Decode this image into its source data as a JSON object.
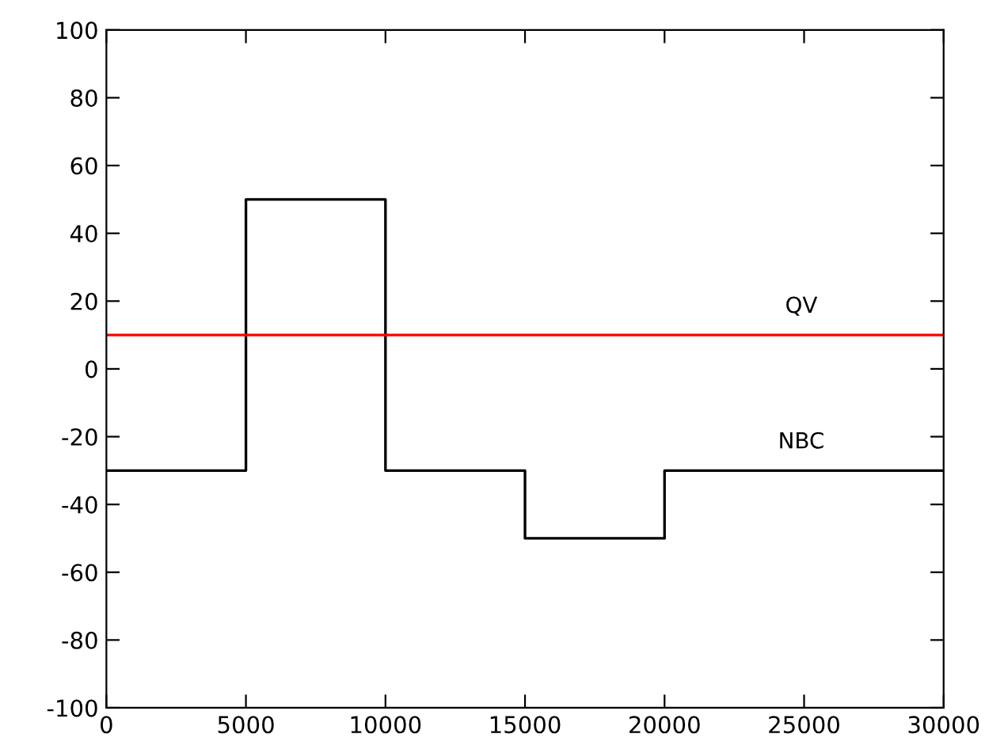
{
  "chart_data": {
    "type": "step",
    "xlim": [
      0,
      30000
    ],
    "ylim": [
      -100,
      100
    ],
    "xticks": [
      0,
      5000,
      10000,
      15000,
      20000,
      25000,
      30000
    ],
    "yticks": [
      -100,
      -80,
      -60,
      -40,
      -20,
      0,
      20,
      40,
      60,
      80,
      100
    ],
    "grid": false,
    "legend": false,
    "series": [
      {
        "name": "NBC",
        "color": "#000000",
        "x": [
          0,
          5000,
          10000,
          15000,
          20000,
          30000
        ],
        "values": [
          -30,
          50,
          -30,
          -50,
          -30,
          -30
        ]
      },
      {
        "name": "QV",
        "type": "line",
        "color": "#ff0000",
        "x": [
          0,
          30000
        ],
        "values": [
          10,
          10
        ]
      }
    ]
  }
}
